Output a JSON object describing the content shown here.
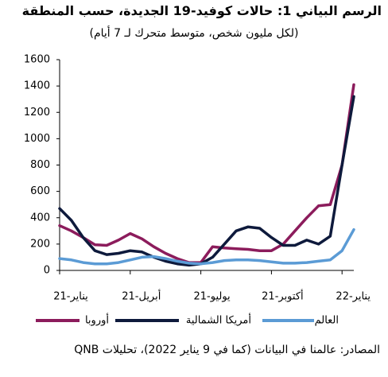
{
  "chart_data": {
    "type": "line",
    "title": "الرسم البياني 1: حالات كوفيد-19 الجديدة، حسب المنطقة",
    "subtitle": "(لكل مليون شخص، متوسط متحرك لـ 7 أيام)",
    "source": "المصادر: عالمنا في البيانات (كما في 9 يناير 2022)، تحليلات QNB",
    "categories": [
      "يناير-21",
      null,
      null,
      null,
      null,
      null,
      "أبريل-21",
      null,
      null,
      null,
      null,
      null,
      "يوليو-21",
      null,
      null,
      null,
      null,
      null,
      "أكتوبر-21",
      null,
      null,
      null,
      null,
      null,
      "يناير-22",
      null
    ],
    "series": [
      {
        "name": "أوروبا",
        "color": "#8c1c5c",
        "values": [
          340,
          300,
          250,
          195,
          190,
          230,
          280,
          240,
          180,
          130,
          90,
          60,
          60,
          180,
          170,
          165,
          160,
          150,
          150,
          200,
          300,
          400,
          490,
          500,
          800,
          1410
        ]
      },
      {
        "name": "أمريكا الشمالية",
        "color": "#0e1a3c",
        "values": [
          470,
          380,
          250,
          150,
          120,
          130,
          150,
          140,
          100,
          70,
          50,
          40,
          50,
          100,
          200,
          300,
          330,
          320,
          250,
          190,
          190,
          230,
          200,
          260,
          800,
          1320
        ]
      },
      {
        "name": "العالم",
        "color": "#5b9bd5",
        "values": [
          90,
          80,
          60,
          50,
          50,
          60,
          80,
          100,
          105,
          90,
          70,
          55,
          50,
          60,
          75,
          80,
          80,
          75,
          65,
          55,
          55,
          60,
          70,
          80,
          150,
          310
        ]
      }
    ],
    "ylim": [
      0,
      1600
    ],
    "yticks": [
      0,
      200,
      400,
      600,
      800,
      1000,
      1200,
      1400,
      1600
    ]
  }
}
